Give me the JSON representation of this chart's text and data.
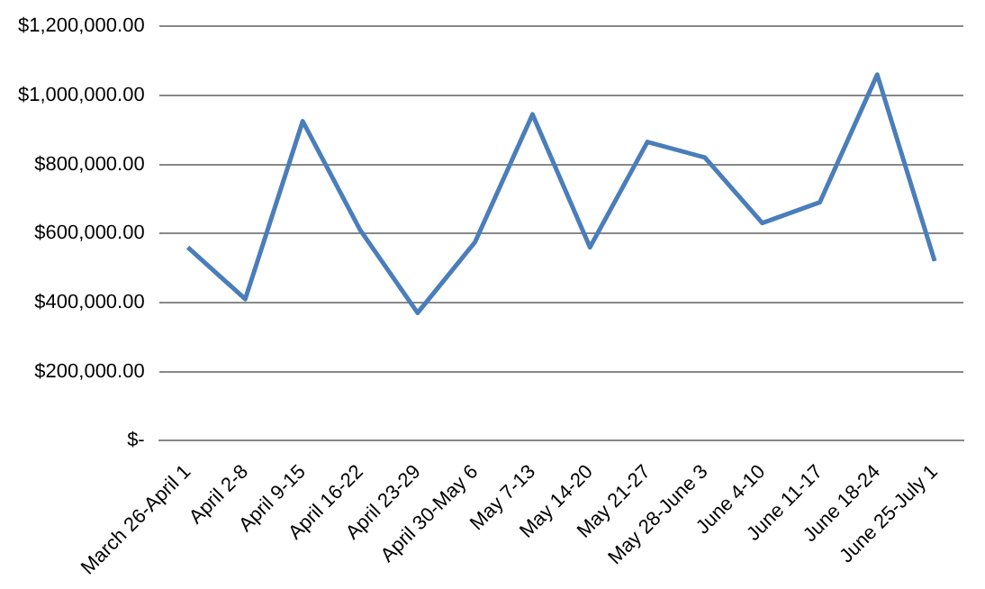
{
  "chart_data": {
    "type": "line",
    "categories": [
      "March 26-April 1",
      "April 2-8",
      "April 9-15",
      "April 16-22",
      "April 23-29",
      "April 30-May 6",
      "May 7-13",
      "May 14-20",
      "May 21-27",
      "May 28-June 3",
      "June 4-10",
      "June 11-17",
      "June 18-24",
      "June 25-July 1"
    ],
    "series": [
      {
        "color": "#4a7ebb",
        "values": [
          560000,
          410000,
          925000,
          610000,
          370000,
          575000,
          945000,
          560000,
          865000,
          820000,
          630000,
          690000,
          1060000,
          520000
        ]
      }
    ],
    "ylim": [
      0,
      1200000
    ],
    "yticks": [
      {
        "value": 0,
        "label": "$-"
      },
      {
        "value": 200000,
        "label": "$200,000.00"
      },
      {
        "value": 400000,
        "label": "$400,000.00"
      },
      {
        "value": 600000,
        "label": "$600,000.00"
      },
      {
        "value": 800000,
        "label": "$800,000.00"
      },
      {
        "value": 1000000,
        "label": "$1,000,000.00"
      },
      {
        "value": 1200000,
        "label": "$1,200,000.00"
      }
    ],
    "grid": "y",
    "legend": false,
    "marker": "none",
    "line_style": "solid"
  }
}
